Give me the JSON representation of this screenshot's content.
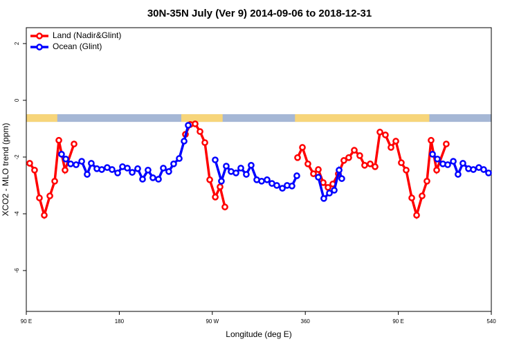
{
  "chart_data": {
    "type": "line",
    "title": "30N-35N July (Ver 9)   2014-09-06 to 2018-12-31",
    "xlabel": "Longitude (deg E)",
    "ylabel": "XCO2 - MLO trend (ppm)",
    "xlim": [
      90,
      540
    ],
    "ylim": [
      -7.44,
      2.56
    ],
    "xticks": [
      {
        "value": 90,
        "label": "90 E"
      },
      180,
      {
        "value": 270,
        "label": "90 W"
      },
      360,
      {
        "value": 450,
        "label": "90 E"
      },
      540
    ],
    "yticks": [
      -6,
      -4,
      -2,
      0,
      2
    ],
    "legend": "top-left",
    "strip": {
      "y": [
        -0.49,
        -0.76
      ],
      "land_color": "#f7d57a",
      "ocean_color": "#a5b7d5",
      "land": [
        [
          90,
          120
        ],
        [
          240,
          280
        ],
        [
          350,
          480
        ]
      ]
    },
    "series": [
      {
        "name": "Land (Nadir&Glint)",
        "color": "#ff0000",
        "x": [
          93.3,
          98.0,
          102.7,
          107.4,
          112.8,
          117.5,
          121.5,
          127.5,
          136.2,
          null,
          244.0,
          248.7,
          253.4,
          258.1,
          262.8,
          267.5,
          272.9,
          277.5,
          282.2,
          null,
          352.5,
          357.2,
          362.5,
          367.9,
          372.6,
          377.3,
          382.0,
          386.6,
          392.0,
          397.3,
          402.0,
          407.4,
          412.7,
          417.4,
          422.8,
          427.5,
          432.2,
          437.5,
          442.9,
          447.6,
          452.9,
          457.6,
          463.0,
          467.7,
          473.0,
          477.7,
          481.7,
          487.1,
          496.4
        ],
        "values": [
          -2.22,
          -2.46,
          -3.44,
          -4.05,
          -3.37,
          -2.85,
          -1.41,
          -2.46,
          -1.54,
          null,
          -1.2,
          -0.85,
          -0.83,
          -1.1,
          -1.49,
          -2.8,
          -3.41,
          -3.05,
          -3.76,
          null,
          -2.02,
          -1.66,
          -2.24,
          -2.59,
          -2.44,
          -2.9,
          -3.07,
          -2.95,
          -2.59,
          -2.12,
          -2.02,
          -1.76,
          -1.95,
          -2.29,
          -2.24,
          -2.34,
          -1.12,
          -1.22,
          -1.66,
          -1.44,
          -2.2,
          -2.46,
          -3.44,
          -4.05,
          -3.37,
          -2.85,
          -1.41,
          -2.46,
          -1.54
        ]
      },
      {
        "name": "Ocean (Glint)",
        "color": "#0000ff",
        "x": [
          124.1,
          128.2,
          132.9,
          138.2,
          143.6,
          148.9,
          152.9,
          158.3,
          163.0,
          168.3,
          173.0,
          178.4,
          183.1,
          187.8,
          192.5,
          197.8,
          202.5,
          207.8,
          212.5,
          217.9,
          222.6,
          227.9,
          232.6,
          238.0,
          242.7,
          246.7,
          null,
          272.8,
          278.8,
          283.5,
          288.2,
          292.9,
          297.6,
          302.9,
          307.6,
          313.0,
          317.7,
          323.0,
          327.7,
          332.4,
          337.8,
          342.4,
          347.1,
          351.8,
          null,
          372.6,
          377.9,
          383.3,
          388.0,
          392.7,
          395.3,
          null,
          483.1,
          487.8,
          493.1,
          497.8,
          503.2,
          507.8,
          512.5,
          517.9,
          522.6,
          527.9,
          532.6,
          537.3
        ],
        "values": [
          -1.9,
          -2.07,
          -2.24,
          -2.27,
          -2.15,
          -2.61,
          -2.22,
          -2.41,
          -2.44,
          -2.37,
          -2.44,
          -2.56,
          -2.34,
          -2.39,
          -2.54,
          -2.41,
          -2.78,
          -2.46,
          -2.73,
          -2.78,
          -2.39,
          -2.51,
          -2.24,
          -2.05,
          -1.44,
          -0.88,
          null,
          -2.1,
          -2.85,
          -2.32,
          -2.51,
          -2.56,
          -2.39,
          -2.61,
          -2.29,
          -2.8,
          -2.85,
          -2.8,
          -2.93,
          -3.0,
          -3.1,
          -3.0,
          -3.02,
          -2.66,
          null,
          -2.71,
          -3.46,
          -3.27,
          -3.17,
          -2.46,
          -2.76,
          null,
          -1.9,
          -2.07,
          -2.24,
          -2.27,
          -2.15,
          -2.61,
          -2.22,
          -2.41,
          -2.44,
          -2.37,
          -2.44,
          -2.56
        ]
      }
    ]
  }
}
